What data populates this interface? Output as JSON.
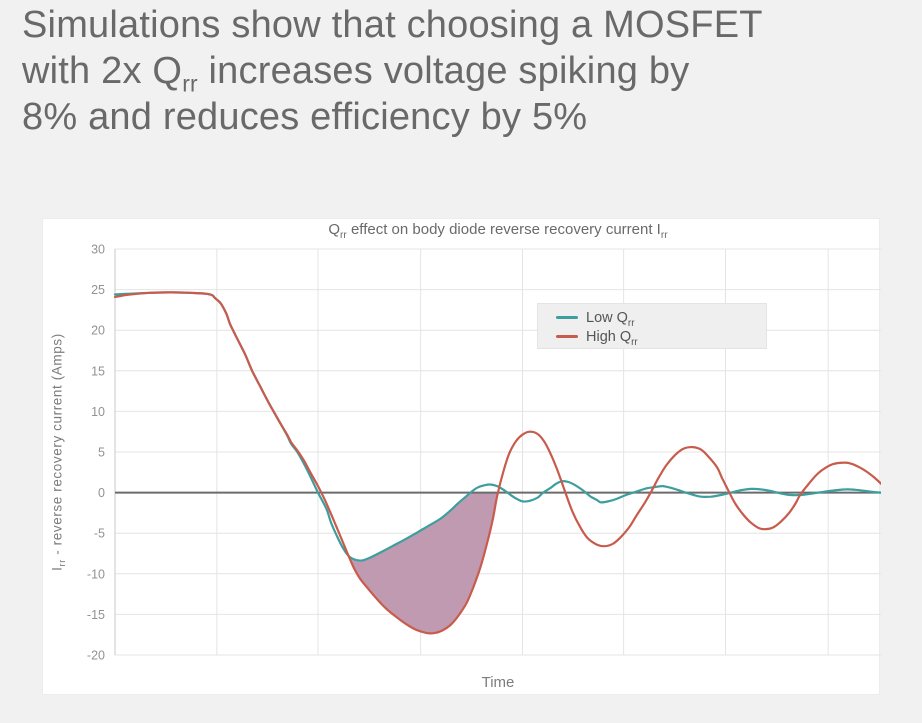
{
  "heading": {
    "line1": "Simulations show that choosing a MOSFET",
    "line2_pre": "with 2x Q",
    "line2_sub": "rr",
    "line2_post": " increases voltage spiking by",
    "line3": "8% and reduces efficiency by 5%",
    "color": "#696969"
  },
  "chart_data": {
    "type": "line",
    "title": {
      "pre": "Q",
      "sub1": "rr",
      "mid": " effect on body diode reverse recovery current I",
      "sub2": "rr"
    },
    "xlabel": "Time",
    "ylabel": {
      "pre": "I",
      "sub": "rr",
      "post": " - reverse recovery current (Amps)"
    },
    "x_range": [
      0,
      100
    ],
    "y_range": [
      -20,
      30
    ],
    "y_ticks": [
      30,
      25,
      20,
      15,
      10,
      5,
      0,
      -5,
      -10,
      -15,
      -20
    ],
    "x_gridlines": [
      0,
      13.3,
      26.5,
      39.9,
      53.2,
      66.4,
      79.7,
      93.1
    ],
    "grid_on": true,
    "grid_color": "#e4e4e4",
    "axis_line_color": "#c9c9c9",
    "zero_line_color": "#6b6b6b",
    "tick_label_color": "#929292",
    "legend": {
      "position": "inside-top-right",
      "items": [
        {
          "pre": "Low Q",
          "sub": "rr",
          "color": "#3d9e9e"
        },
        {
          "pre": "High Q",
          "sub": "rr",
          "color": "#c85b4c"
        }
      ]
    },
    "series": [
      {
        "name": "Low Qrr",
        "color": "#3d9e9e",
        "points": [
          [
            0,
            24.4
          ],
          [
            2,
            24.5
          ],
          [
            4.6,
            24.6
          ],
          [
            7.2,
            24.65
          ],
          [
            9.8,
            24.6
          ],
          [
            11.8,
            24.5
          ],
          [
            12.7,
            24.3
          ],
          [
            13,
            24
          ],
          [
            13.8,
            23.3
          ],
          [
            14.5,
            22.1
          ],
          [
            15,
            20.8
          ],
          [
            15.4,
            20
          ],
          [
            16.2,
            18.5
          ],
          [
            17,
            17
          ],
          [
            17.9,
            15
          ],
          [
            19,
            13
          ],
          [
            20.1,
            11
          ],
          [
            20.7,
            10
          ],
          [
            21.6,
            8.5
          ],
          [
            22.5,
            7
          ],
          [
            23,
            6
          ],
          [
            23.8,
            5
          ],
          [
            24.7,
            3.5
          ],
          [
            25.5,
            2
          ],
          [
            26.5,
            0
          ],
          [
            27.6,
            -2
          ],
          [
            28.2,
            -3.7
          ],
          [
            29,
            -5.4
          ],
          [
            29.8,
            -6.9
          ],
          [
            30.6,
            -7.9
          ],
          [
            31.5,
            -8.3
          ],
          [
            32.3,
            -8.35
          ],
          [
            33.3,
            -8
          ],
          [
            34.6,
            -7.4
          ],
          [
            36.2,
            -6.6
          ],
          [
            37.8,
            -5.8
          ],
          [
            39.3,
            -5
          ],
          [
            40.9,
            -4.1
          ],
          [
            42.5,
            -3.2
          ],
          [
            43.8,
            -2.2
          ],
          [
            44.8,
            -1.3
          ],
          [
            45.8,
            -0.5
          ],
          [
            46.4,
            0
          ],
          [
            47.3,
            0.6
          ],
          [
            48.2,
            0.9
          ],
          [
            49,
            1
          ],
          [
            49.9,
            0.8
          ],
          [
            50.8,
            0.3
          ],
          [
            51.8,
            -0.4
          ],
          [
            52.7,
            -0.9
          ],
          [
            53.3,
            -1.1
          ],
          [
            54.2,
            -1
          ],
          [
            55.2,
            -0.6
          ],
          [
            55.9,
            0
          ],
          [
            56.9,
            0.6
          ],
          [
            57.6,
            1.1
          ],
          [
            58.4,
            1.4
          ],
          [
            59.2,
            1.3
          ],
          [
            60.1,
            0.9
          ],
          [
            61.2,
            0.2
          ],
          [
            62.1,
            -0.5
          ],
          [
            62.9,
            -0.9
          ],
          [
            63.4,
            -1.2
          ],
          [
            64.3,
            -1.1
          ],
          [
            65.4,
            -0.8
          ],
          [
            66.7,
            -0.3
          ],
          [
            68,
            0.1
          ],
          [
            69.3,
            0.5
          ],
          [
            70.6,
            0.7
          ],
          [
            71.5,
            0.8
          ],
          [
            72.5,
            0.6
          ],
          [
            73.9,
            0.2
          ],
          [
            75.2,
            -0.2
          ],
          [
            76.5,
            -0.5
          ],
          [
            77.8,
            -0.5
          ],
          [
            79.1,
            -0.3
          ],
          [
            80.4,
            0
          ],
          [
            81.7,
            0.3
          ],
          [
            83,
            0.45
          ],
          [
            84.3,
            0.4
          ],
          [
            85.6,
            0.2
          ],
          [
            86.9,
            -0.1
          ],
          [
            88.2,
            -0.3
          ],
          [
            89.5,
            -0.3
          ],
          [
            90.8,
            -0.15
          ],
          [
            92.2,
            0.05
          ],
          [
            93.7,
            0.25
          ],
          [
            95.4,
            0.4
          ],
          [
            96.7,
            0.35
          ],
          [
            98,
            0.2
          ],
          [
            99.3,
            0.05
          ],
          [
            100,
            0
          ]
        ]
      },
      {
        "name": "High Qrr",
        "color": "#c85b4c",
        "points": [
          [
            0,
            24.1
          ],
          [
            2,
            24.4
          ],
          [
            4.6,
            24.6
          ],
          [
            7.2,
            24.65
          ],
          [
            9.8,
            24.6
          ],
          [
            11.8,
            24.5
          ],
          [
            12.7,
            24.3
          ],
          [
            13,
            24
          ],
          [
            13.8,
            23.3
          ],
          [
            14.5,
            22.1
          ],
          [
            15,
            20.8
          ],
          [
            15.4,
            20
          ],
          [
            16.2,
            18.5
          ],
          [
            17,
            17
          ],
          [
            17.9,
            15
          ],
          [
            19,
            13
          ],
          [
            20.1,
            11
          ],
          [
            20.7,
            10
          ],
          [
            21.6,
            8.5
          ],
          [
            22.5,
            7.1
          ],
          [
            23,
            6.2
          ],
          [
            23.8,
            5.2
          ],
          [
            24.7,
            3.9
          ],
          [
            25.5,
            2.5
          ],
          [
            26.5,
            0.8
          ],
          [
            27.3,
            -0.7
          ],
          [
            28.1,
            -2.4
          ],
          [
            28.9,
            -4.2
          ],
          [
            29.7,
            -6
          ],
          [
            30.5,
            -7.8
          ],
          [
            31.2,
            -9.3
          ],
          [
            32,
            -10.6
          ],
          [
            33.1,
            -11.9
          ],
          [
            34.1,
            -13
          ],
          [
            35.4,
            -14.3
          ],
          [
            36.7,
            -15.3
          ],
          [
            38,
            -16.2
          ],
          [
            39.3,
            -16.9
          ],
          [
            40.7,
            -17.3
          ],
          [
            41.7,
            -17.3
          ],
          [
            42.7,
            -17
          ],
          [
            43.8,
            -16.3
          ],
          [
            44.8,
            -15.2
          ],
          [
            45.9,
            -13.6
          ],
          [
            46.8,
            -11.6
          ],
          [
            47.7,
            -9.2
          ],
          [
            48.5,
            -6.5
          ],
          [
            49.3,
            -3.4
          ],
          [
            49.9,
            -0.4
          ],
          [
            50.7,
            2.6
          ],
          [
            51.5,
            4.9
          ],
          [
            52.4,
            6.4
          ],
          [
            53.3,
            7.2
          ],
          [
            54.2,
            7.5
          ],
          [
            55.2,
            7.2
          ],
          [
            56.1,
            6.2
          ],
          [
            57,
            4.5
          ],
          [
            57.9,
            2.4
          ],
          [
            58.8,
            0
          ],
          [
            59.7,
            -2.3
          ],
          [
            60.7,
            -4.2
          ],
          [
            61.7,
            -5.6
          ],
          [
            62.9,
            -6.4
          ],
          [
            63.9,
            -6.6
          ],
          [
            65,
            -6.3
          ],
          [
            66,
            -5.5
          ],
          [
            67.1,
            -4.3
          ],
          [
            68.1,
            -2.8
          ],
          [
            69.2,
            -1.2
          ],
          [
            70.1,
            0.3
          ],
          [
            71,
            1.9
          ],
          [
            72,
            3.4
          ],
          [
            73.1,
            4.6
          ],
          [
            74.2,
            5.4
          ],
          [
            75.4,
            5.6
          ],
          [
            76.5,
            5.3
          ],
          [
            77.5,
            4.4
          ],
          [
            78.6,
            3.1
          ],
          [
            79.3,
            1.7
          ],
          [
            80.1,
            0.2
          ],
          [
            81,
            -1.4
          ],
          [
            82,
            -2.7
          ],
          [
            83,
            -3.7
          ],
          [
            84.1,
            -4.4
          ],
          [
            85,
            -4.5
          ],
          [
            85.9,
            -4.3
          ],
          [
            86.9,
            -3.6
          ],
          [
            88,
            -2.5
          ],
          [
            88.8,
            -1.4
          ],
          [
            89.5,
            -0.2
          ],
          [
            90.5,
            1
          ],
          [
            91.5,
            2.1
          ],
          [
            92.5,
            2.9
          ],
          [
            93.7,
            3.5
          ],
          [
            95.3,
            3.7
          ],
          [
            96.3,
            3.5
          ],
          [
            97.4,
            3
          ],
          [
            98.4,
            2.4
          ],
          [
            99.2,
            1.8
          ],
          [
            100,
            1.1
          ]
        ]
      }
    ],
    "shaded_region": {
      "description": "area between Low Qrr and High Qrr curves below zero",
      "upper_series": 0,
      "lower_series": 1,
      "from": 30.5,
      "to": 49.9,
      "clamp_upper_to_zero": true,
      "color": "#c09ab1"
    }
  }
}
